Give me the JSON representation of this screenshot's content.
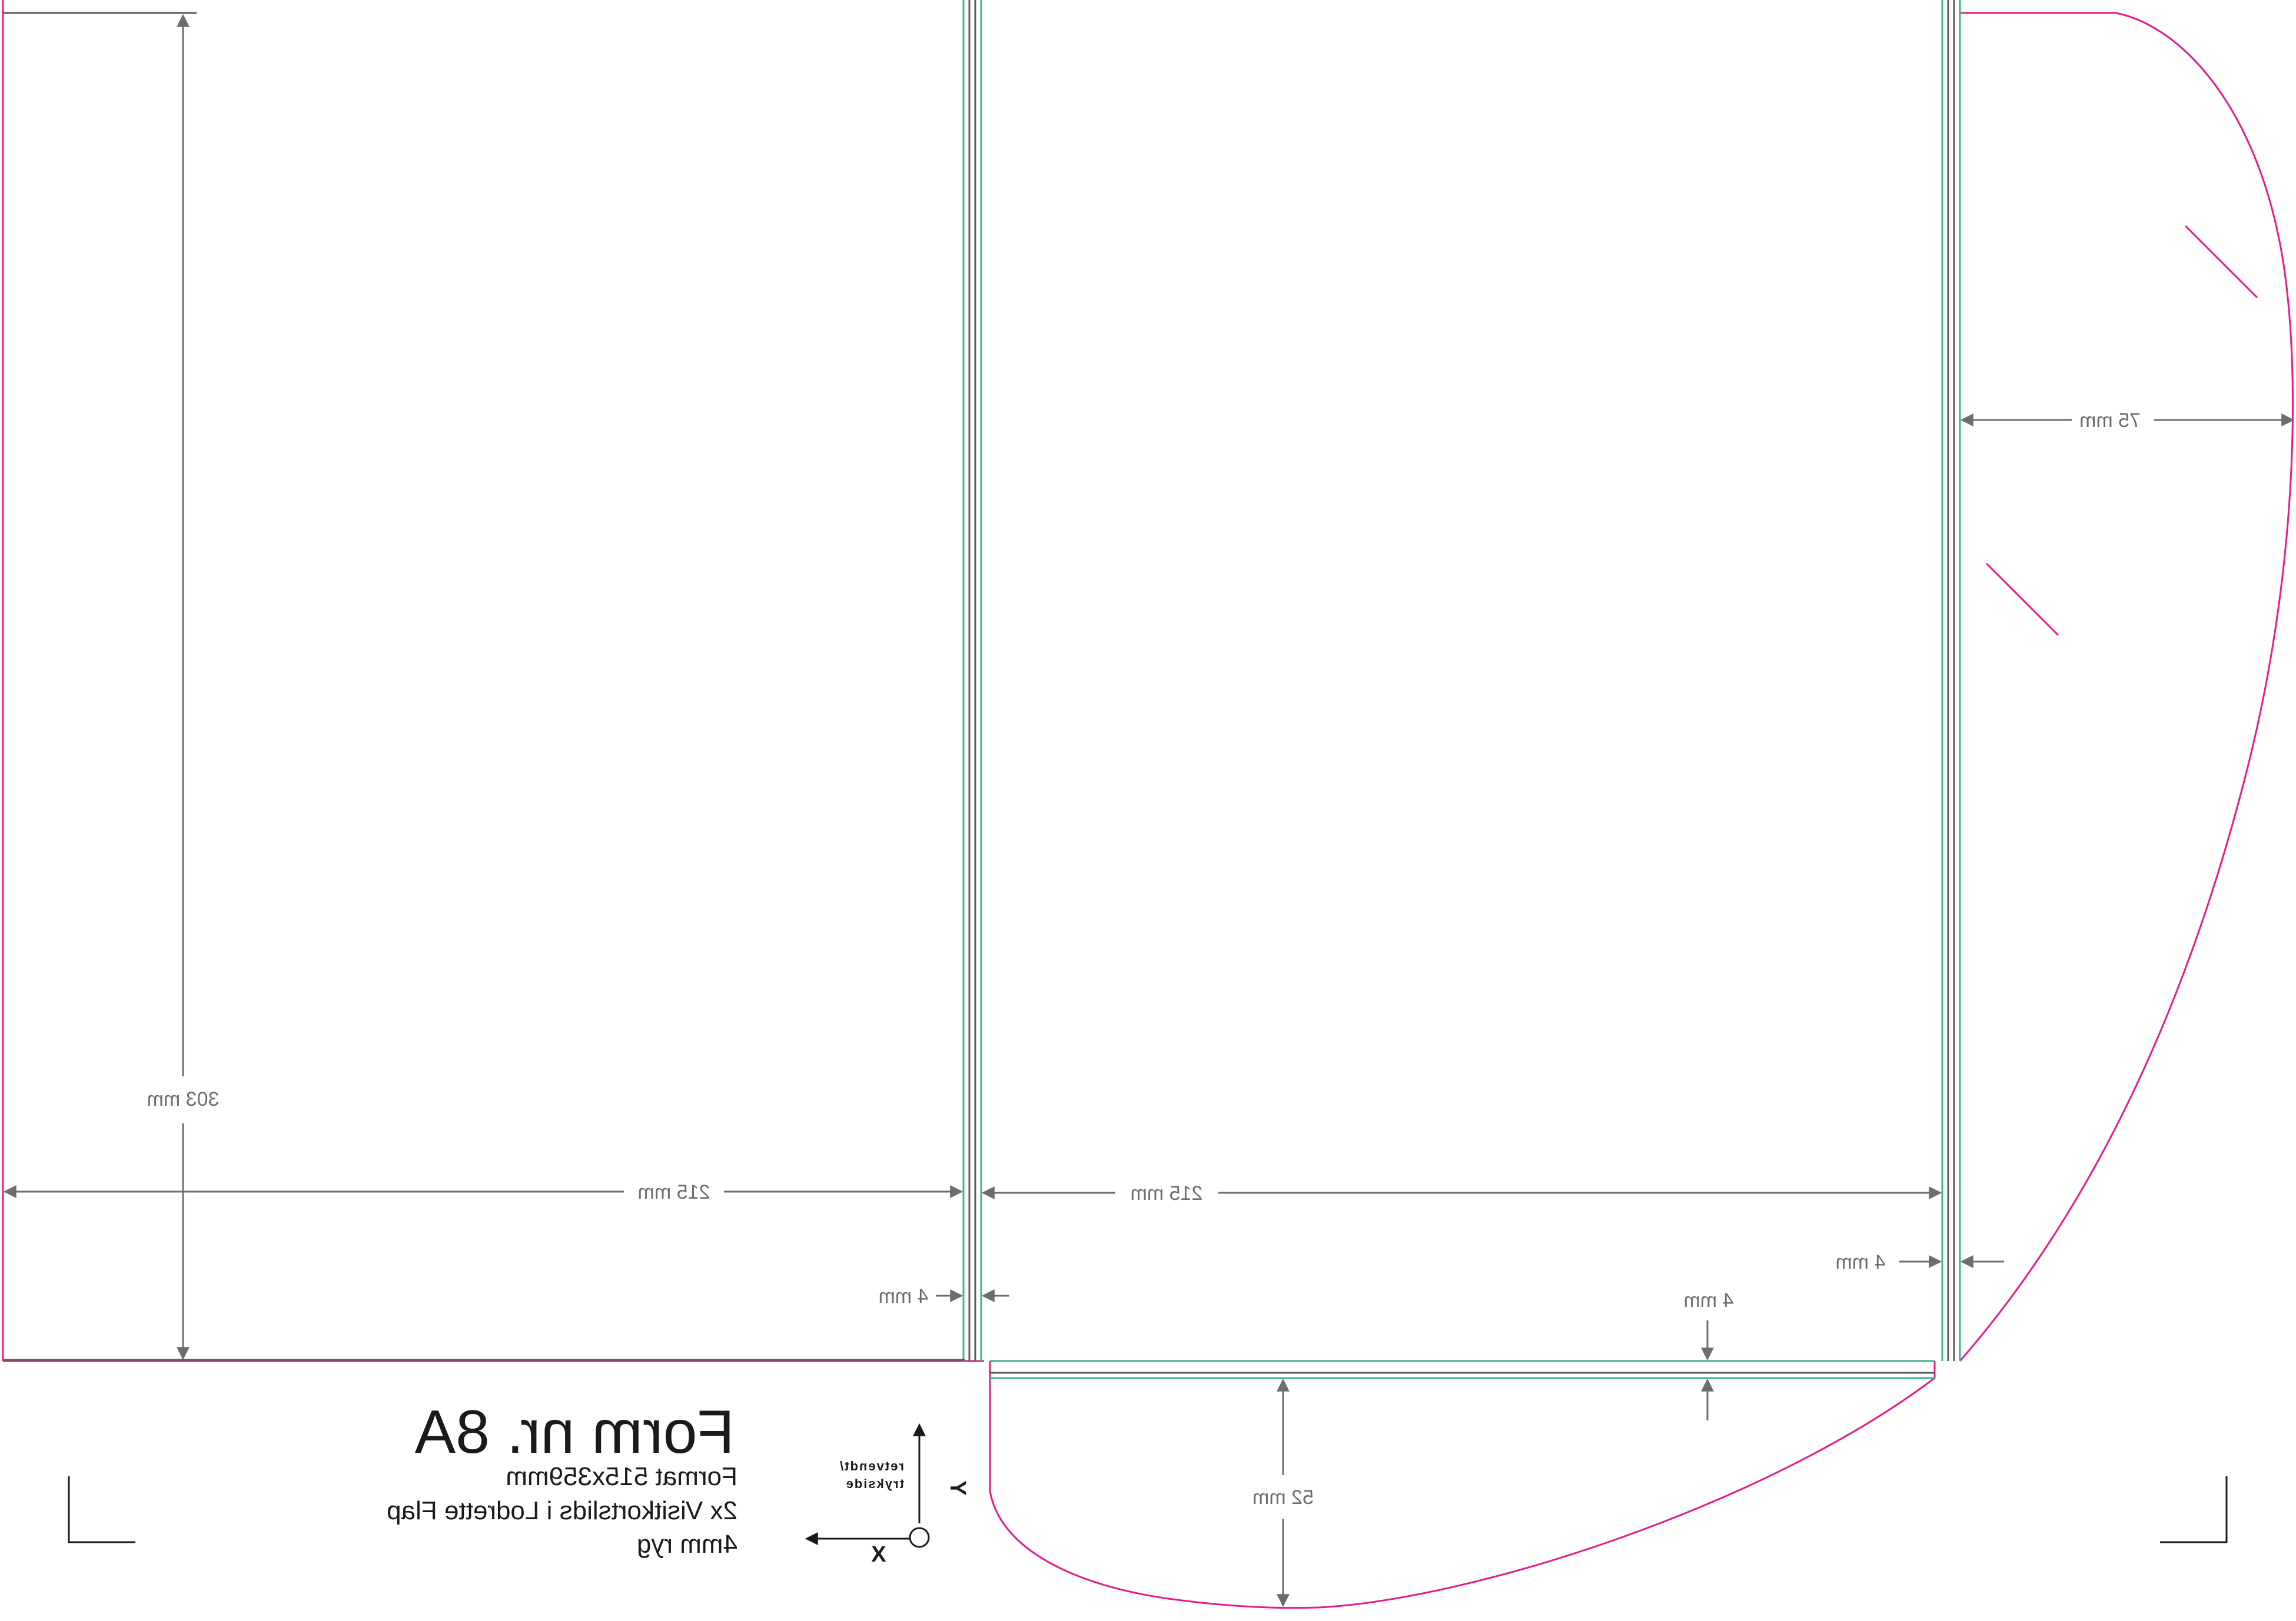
{
  "colors": {
    "cut_line": "#e6198c",
    "bleed_line": "#3cb48c",
    "fold_line": "#5a5a5a",
    "dimension_line": "#6d6d6d",
    "text": "#1a1a1a"
  },
  "dimensions": {
    "height_left": "303 mm",
    "width_left_panel": "215 mm",
    "width_right_panel": "215 mm",
    "spine_left": "4 mm",
    "spine_right": "4 mm",
    "bottom_gap": "4 mm",
    "flap_side": "75 mm",
    "flap_bottom": "52 mm"
  },
  "title_block": {
    "title": "Form nr. 8A",
    "line1": "Format 515x359mm",
    "line2": "2x Visitkortslids i Lodrette Flap",
    "line3": "4mm ryg"
  },
  "axes": {
    "x_label": "X",
    "y_label": "Y",
    "note_line1": "retvendt/",
    "note_line2": "trykside"
  }
}
